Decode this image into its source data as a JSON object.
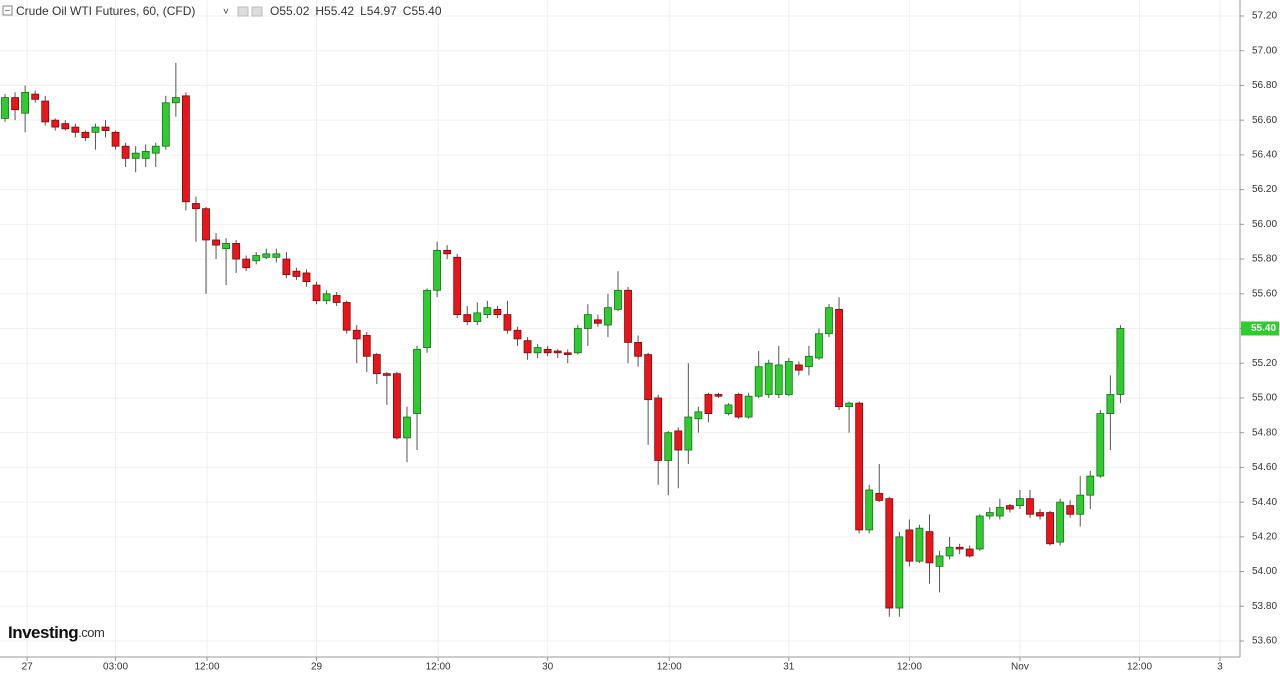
{
  "chart_data": {
    "type": "candlestick",
    "title": "Crude Oil WTI Futures, 60, (CFD)",
    "header_values": [
      {
        "key": "O",
        "value": "55.02"
      },
      {
        "key": "H",
        "value": "55.42"
      },
      {
        "key": "L",
        "value": "54.97"
      },
      {
        "key": "C",
        "value": "55.40"
      }
    ],
    "last_label": "55.40",
    "logo": [
      "Investing",
      ".com"
    ],
    "up_color": "#2ecc2e",
    "down_color": "#e8151b",
    "grid": true,
    "ylim": [
      53.508,
      57.292
    ],
    "yticks": [
      {
        "value": 53.6,
        "label": "53.60"
      },
      {
        "value": 53.8,
        "label": "53.80"
      },
      {
        "value": 54.0,
        "label": "54.00"
      },
      {
        "value": 54.2,
        "label": "54.20"
      },
      {
        "value": 54.4,
        "label": "54.40"
      },
      {
        "value": 54.6,
        "label": "54.60"
      },
      {
        "value": 54.8,
        "label": "54.80"
      },
      {
        "value": 55.0,
        "label": "55.00"
      },
      {
        "value": 55.2,
        "label": "55.20"
      },
      {
        "value": 55.4,
        "label": "55.40"
      },
      {
        "value": 55.6,
        "label": "55.60"
      },
      {
        "value": 55.8,
        "label": "55.80"
      },
      {
        "value": 56.0,
        "label": "56.00"
      },
      {
        "value": 56.2,
        "label": "56.20"
      },
      {
        "value": 56.4,
        "label": "56.40"
      },
      {
        "value": 56.6,
        "label": "56.60"
      },
      {
        "value": 56.8,
        "label": "56.80"
      },
      {
        "value": 57.0,
        "label": "57.00"
      },
      {
        "value": 57.2,
        "label": "57.20"
      }
    ],
    "xlim": [
      -0.5,
      122.9
    ],
    "xticks": [
      {
        "value": 2.2,
        "label": "27"
      },
      {
        "value": 11.0,
        "label": "03:00"
      },
      {
        "value": 20.1,
        "label": "12:00"
      },
      {
        "value": 31.0,
        "label": "29"
      },
      {
        "value": 43.1,
        "label": "12:00"
      },
      {
        "value": 54.0,
        "label": "30"
      },
      {
        "value": 66.1,
        "label": "12:00"
      },
      {
        "value": 78.0,
        "label": "31"
      },
      {
        "value": 90.0,
        "label": "12:00"
      },
      {
        "value": 101.0,
        "label": "Nov"
      },
      {
        "value": 112.9,
        "label": "12:00"
      },
      {
        "value": 120.9,
        "label": "3"
      }
    ],
    "open": [
      56.61,
      56.73,
      56.64,
      56.75,
      56.71,
      56.6,
      56.58,
      56.56,
      56.53,
      56.53,
      56.56,
      56.53,
      56.45,
      56.38,
      56.38,
      56.41,
      56.45,
      56.7,
      56.74,
      56.12,
      56.09,
      55.91,
      55.86,
      55.89,
      55.8,
      55.79,
      55.81,
      55.81,
      55.8,
      55.73,
      55.72,
      55.65,
      55.56,
      55.59,
      55.55,
      55.39,
      55.36,
      55.25,
      55.14,
      55.14,
      54.77,
      54.91,
      55.29,
      55.62,
      55.85,
      55.81,
      55.48,
      55.44,
      55.48,
      55.51,
      55.48,
      55.39,
      55.33,
      55.26,
      55.28,
      55.27,
      55.26,
      55.26,
      55.4,
      55.45,
      55.42,
      55.51,
      55.62,
      55.32,
      55.25,
      55.0,
      54.64,
      54.81,
      54.7,
      54.88,
      55.02,
      55.02,
      54.91,
      55.02,
      54.89,
      55.01,
      55.02,
      55.02,
      55.02,
      55.19,
      55.18,
      55.23,
      55.37,
      55.51,
      54.95,
      54.97,
      54.24,
      54.45,
      54.42,
      53.79,
      54.24,
      54.06,
      54.23,
      54.03,
      54.09,
      54.14,
      54.13,
      54.13,
      54.32,
      54.32,
      54.38,
      54.38,
      54.42,
      54.34,
      54.34,
      54.17,
      54.38,
      54.33,
      54.44,
      54.55,
      54.91,
      55.02
    ],
    "high": [
      56.75,
      56.76,
      56.8,
      56.77,
      56.74,
      56.61,
      56.6,
      56.58,
      56.54,
      56.58,
      56.6,
      56.54,
      56.47,
      56.45,
      56.46,
      56.47,
      56.74,
      56.93,
      56.76,
      56.16,
      56.1,
      55.95,
      55.92,
      55.91,
      55.82,
      55.84,
      55.86,
      55.86,
      55.84,
      55.75,
      55.74,
      55.67,
      55.62,
      55.61,
      55.56,
      55.42,
      55.38,
      55.26,
      55.15,
      55.15,
      54.95,
      55.3,
      55.63,
      55.9,
      55.88,
      55.83,
      55.53,
      55.55,
      55.56,
      55.53,
      55.56,
      55.41,
      55.35,
      55.31,
      55.3,
      55.28,
      55.28,
      55.42,
      55.54,
      55.48,
      55.6,
      55.73,
      55.64,
      55.36,
      55.26,
      55.02,
      54.81,
      54.83,
      55.2,
      54.95,
      55.03,
      55.03,
      54.97,
      55.03,
      55.03,
      55.27,
      55.22,
      55.3,
      55.23,
      55.21,
      55.3,
      55.4,
      55.54,
      55.58,
      54.98,
      54.98,
      54.5,
      54.62,
      54.43,
      54.23,
      54.3,
      54.27,
      54.33,
      54.12,
      54.2,
      54.16,
      54.15,
      54.33,
      54.37,
      54.42,
      54.39,
      54.47,
      54.47,
      54.36,
      54.35,
      54.42,
      54.41,
      54.55,
      54.58,
      54.93,
      55.13,
      55.42
    ],
    "low": [
      56.59,
      56.6,
      56.53,
      56.7,
      56.57,
      56.54,
      56.54,
      56.5,
      56.48,
      56.43,
      56.5,
      56.43,
      56.33,
      56.3,
      56.33,
      56.33,
      56.43,
      56.62,
      56.08,
      55.9,
      55.6,
      55.8,
      55.65,
      55.72,
      55.73,
      55.77,
      55.8,
      55.78,
      55.69,
      55.68,
      55.64,
      55.54,
      55.54,
      55.53,
      55.37,
      55.2,
      55.15,
      55.08,
      54.96,
      54.76,
      54.63,
      54.7,
      55.26,
      55.58,
      55.8,
      55.46,
      55.42,
      55.42,
      55.46,
      55.46,
      55.37,
      55.3,
      55.22,
      55.23,
      55.24,
      55.23,
      55.2,
      55.25,
      55.3,
      55.41,
      55.35,
      55.5,
      55.2,
      55.18,
      54.73,
      54.5,
      54.44,
      54.48,
      54.62,
      54.8,
      54.86,
      55.0,
      54.9,
      54.88,
      54.88,
      55.0,
      55.0,
      55.0,
      55.01,
      55.13,
      55.13,
      55.22,
      55.35,
      54.93,
      54.8,
      54.22,
      54.22,
      54.4,
      53.74,
      53.74,
      54.03,
      54.05,
      53.93,
      53.88,
      54.07,
      54.1,
      54.08,
      54.12,
      54.3,
      54.3,
      54.34,
      54.36,
      54.31,
      54.3,
      54.15,
      54.15,
      54.31,
      54.26,
      54.36,
      54.54,
      54.7,
      54.97
    ],
    "close": [
      56.73,
      56.66,
      56.76,
      56.72,
      56.59,
      56.56,
      56.55,
      56.53,
      56.5,
      56.56,
      56.54,
      56.45,
      56.38,
      56.41,
      56.42,
      56.45,
      56.7,
      56.73,
      56.13,
      56.09,
      55.91,
      55.88,
      55.89,
      55.8,
      55.75,
      55.82,
      55.83,
      55.83,
      55.71,
      55.7,
      55.67,
      55.56,
      55.6,
      55.55,
      55.39,
      55.34,
      55.24,
      55.14,
      55.13,
      54.77,
      54.89,
      55.28,
      55.62,
      55.85,
      55.83,
      55.48,
      55.44,
      55.49,
      55.52,
      55.48,
      55.39,
      55.34,
      55.26,
      55.29,
      55.26,
      55.26,
      55.25,
      55.4,
      55.48,
      55.43,
      55.52,
      55.62,
      55.32,
      55.24,
      54.99,
      54.64,
      54.8,
      54.7,
      54.89,
      54.92,
      54.91,
      55.01,
      54.96,
      54.89,
      55.01,
      55.18,
      55.2,
      55.19,
      55.21,
      55.16,
      55.24,
      55.37,
      55.52,
      54.95,
      54.97,
      54.24,
      54.47,
      54.41,
      53.79,
      54.2,
      54.06,
      54.25,
      54.05,
      54.09,
      54.14,
      54.13,
      54.09,
      54.32,
      54.34,
      54.37,
      54.36,
      54.42,
      54.33,
      54.32,
      54.16,
      54.4,
      54.33,
      54.44,
      54.55,
      54.91,
      55.02,
      55.4
    ]
  }
}
